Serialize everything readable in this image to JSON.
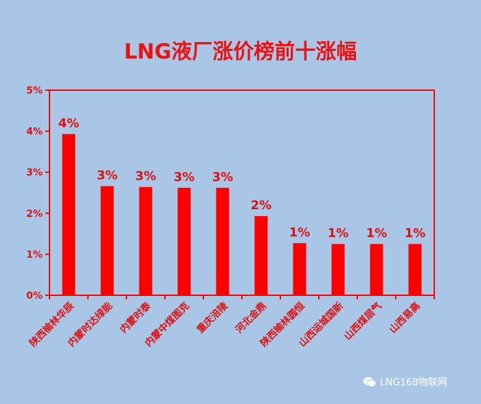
{
  "chart_data": {
    "type": "bar",
    "title": "LNG液厂涨价榜前十涨幅",
    "categories": [
      "陕西榆林华辰",
      "内蒙时达绿能",
      "内蒙时泰",
      "内蒙中煤图克",
      "重庆涪陵",
      "河北金鼎",
      "陕西榆林圆恒",
      "山西运城国新",
      "山西煤层气",
      "山西易高"
    ],
    "values": [
      3.93,
      2.66,
      2.64,
      2.62,
      2.62,
      1.93,
      1.27,
      1.25,
      1.25,
      1.25
    ],
    "data_labels": [
      "4%",
      "3%",
      "3%",
      "3%",
      "3%",
      "2%",
      "1%",
      "1%",
      "1%",
      "1%"
    ],
    "y_ticks": [
      "0%",
      "1%",
      "2%",
      "3%",
      "4%",
      "5%"
    ],
    "ylim": [
      0,
      5
    ],
    "grid": false,
    "legend": "none",
    "colors": {
      "bar": "#ff0000",
      "frame": "#ff0000",
      "label": "#dd1111",
      "background": "#a9c6e6"
    }
  },
  "watermark": {
    "text": "LNG168物联网",
    "icon": "wechat-icon"
  }
}
